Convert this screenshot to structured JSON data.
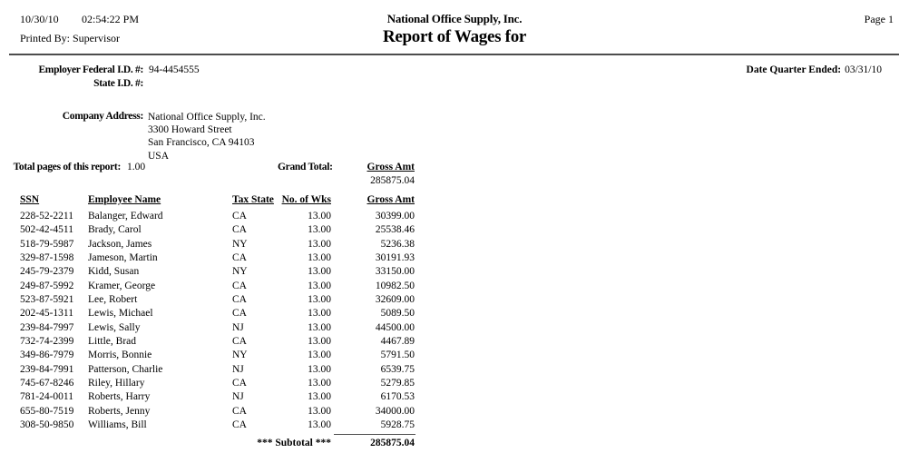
{
  "colors": {
    "text": "#000000",
    "background": "#ffffff",
    "rule": "#4d4d4d"
  },
  "header": {
    "date": "10/30/10",
    "time": "02:54:22 PM",
    "printed_by": "Printed By: Supervisor",
    "company_name": "National Office Supply, Inc.",
    "report_title": "Report of Wages for",
    "page_label": "Page 1"
  },
  "info": {
    "employer_fed_id_label": "Employer Federal I.D. #:",
    "employer_fed_id": "94-4454555",
    "state_id_label": "State I.D. #:",
    "state_id": "",
    "date_quarter_ended_label": "Date Quarter Ended:",
    "date_quarter_ended": "03/31/10",
    "company_address_label": "Company Address:",
    "company_address": [
      "National Office Supply, Inc.",
      "3300 Howard Street",
      "San Francisco, CA 94103",
      "USA"
    ],
    "total_pages_label": "Total pages of this report:",
    "total_pages": "1.00",
    "grand_total_label": "Grand Total:",
    "grand_total_column_label": "Gross Amt",
    "grand_total_value": "285875.04"
  },
  "table": {
    "headers": [
      "SSN",
      "Employee Name",
      "Tax State",
      "No. of Wks",
      "Gross Amt"
    ],
    "rows": [
      [
        "228-52-2211",
        "Balanger, Edward",
        "CA",
        "13.00",
        "30399.00"
      ],
      [
        "502-42-4511",
        "Brady, Carol",
        "CA",
        "13.00",
        "25538.46"
      ],
      [
        "518-79-5987",
        "Jackson, James",
        "NY",
        "13.00",
        "5236.38"
      ],
      [
        "329-87-1598",
        "Jameson, Martin",
        "CA",
        "13.00",
        "30191.93"
      ],
      [
        "245-79-2379",
        "Kidd, Susan",
        "NY",
        "13.00",
        "33150.00"
      ],
      [
        "249-87-5992",
        "Kramer, George",
        "CA",
        "13.00",
        "10982.50"
      ],
      [
        "523-87-5921",
        "Lee, Robert",
        "CA",
        "13.00",
        "32609.00"
      ],
      [
        "202-45-1311",
        "Lewis, Michael",
        "CA",
        "13.00",
        "5089.50"
      ],
      [
        "239-84-7997",
        "Lewis, Sally",
        "NJ",
        "13.00",
        "44500.00"
      ],
      [
        "732-74-2399",
        "Little, Brad",
        "CA",
        "13.00",
        "4467.89"
      ],
      [
        "349-86-7979",
        "Morris, Bonnie",
        "NY",
        "13.00",
        "5791.50"
      ],
      [
        "239-84-7991",
        "Patterson, Charlie",
        "NJ",
        "13.00",
        "6539.75"
      ],
      [
        "745-67-8246",
        "Riley, Hillary",
        "CA",
        "13.00",
        "5279.85"
      ],
      [
        "781-24-0011",
        "Roberts, Harry",
        "NJ",
        "13.00",
        "6170.53"
      ],
      [
        "655-80-7519",
        "Roberts, Jenny",
        "CA",
        "13.00",
        "34000.00"
      ],
      [
        "308-50-9850",
        "Williams, Bill",
        "CA",
        "13.00",
        "5928.75"
      ]
    ],
    "subtotal_label": "*** Subtotal ***",
    "subtotal_value": "285875.04"
  }
}
